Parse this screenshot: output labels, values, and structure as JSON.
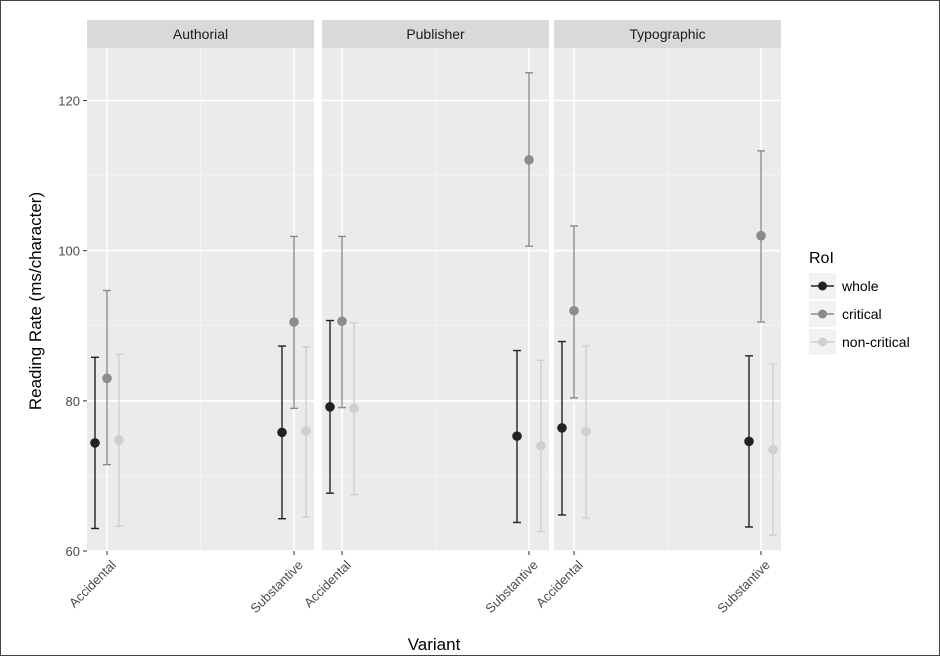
{
  "chart_data": {
    "type": "scatter",
    "subtype": "point-with-error-bars, faceted",
    "xlabel": "Variant",
    "ylabel": "Reading Rate (ms/character)",
    "ylim": [
      60,
      127
    ],
    "yticks": [
      60,
      80,
      100,
      120
    ],
    "categories": [
      "Accidental",
      "Substantive"
    ],
    "grid": true,
    "legend": {
      "title": "RoI",
      "position": "right",
      "entries": [
        "whole",
        "critical",
        "non-critical"
      ]
    },
    "series_colors": {
      "whole": "#222222",
      "critical": "#8c8c8c",
      "non-critical": "#cfcfcf"
    },
    "facets": [
      {
        "name": "Authorial",
        "series": [
          {
            "name": "whole",
            "values": [
              74.4,
              75.8
            ],
            "lower": [
              63.0,
              64.3
            ],
            "upper": [
              85.8,
              87.3
            ]
          },
          {
            "name": "critical",
            "values": [
              83.0,
              90.5
            ],
            "lower": [
              71.5,
              79.0
            ],
            "upper": [
              94.7,
              101.9
            ]
          },
          {
            "name": "non-critical",
            "values": [
              74.8,
              76.0
            ],
            "lower": [
              63.3,
              64.5
            ],
            "upper": [
              86.2,
              87.2
            ]
          }
        ]
      },
      {
        "name": "Publisher",
        "series": [
          {
            "name": "whole",
            "values": [
              79.2,
              75.3
            ],
            "lower": [
              67.7,
              63.8
            ],
            "upper": [
              90.7,
              86.7
            ]
          },
          {
            "name": "critical",
            "values": [
              90.6,
              112.1
            ],
            "lower": [
              79.1,
              100.6
            ],
            "upper": [
              101.9,
              123.7
            ]
          },
          {
            "name": "non-critical",
            "values": [
              79.0,
              74.0
            ],
            "lower": [
              67.5,
              62.6
            ],
            "upper": [
              90.4,
              85.4
            ]
          }
        ]
      },
      {
        "name": "Typographic",
        "series": [
          {
            "name": "whole",
            "values": [
              76.4,
              74.6
            ],
            "lower": [
              64.8,
              63.2
            ],
            "upper": [
              87.9,
              86.0
            ]
          },
          {
            "name": "critical",
            "values": [
              92.0,
              102.0
            ],
            "lower": [
              80.4,
              90.5
            ],
            "upper": [
              103.3,
              113.3
            ]
          },
          {
            "name": "non-critical",
            "values": [
              75.9,
              73.5
            ],
            "lower": [
              64.4,
              62.1
            ],
            "upper": [
              87.3,
              84.9
            ]
          }
        ]
      }
    ]
  }
}
